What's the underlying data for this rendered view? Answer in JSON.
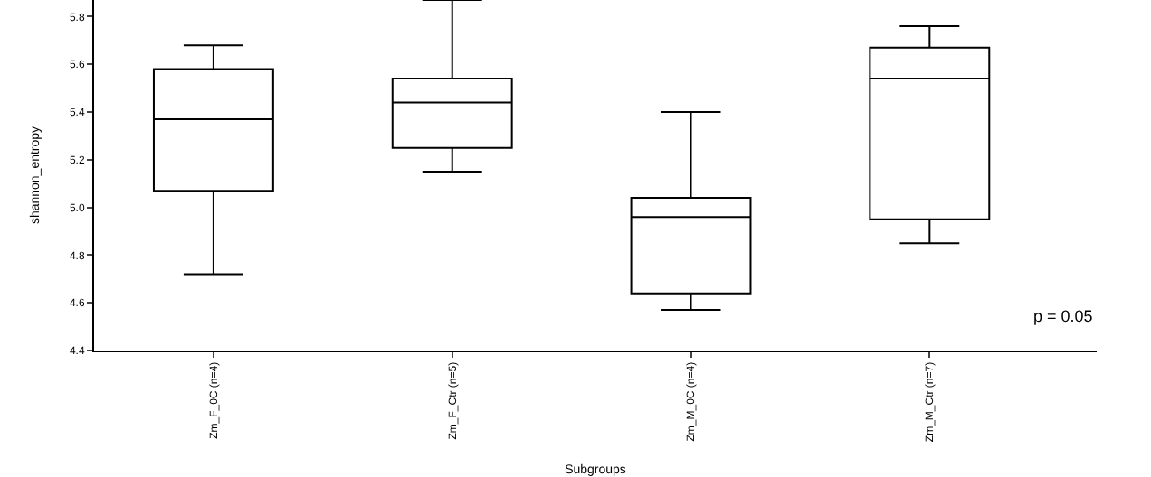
{
  "chart_data": {
    "type": "box",
    "xlabel": "Subgroups",
    "ylabel": "shannon_entropy",
    "categories": [
      "Zm_F_0C (n=4)",
      "Zm_F_Ctr (n=5)",
      "Zm_M_0C (n=4)",
      "Zm_M_Ctr (n=7)"
    ],
    "boxes": [
      {
        "low": 4.72,
        "q1": 5.07,
        "median": 5.37,
        "q3": 5.58,
        "high": 5.68
      },
      {
        "low": 5.15,
        "q1": 5.25,
        "median": 5.44,
        "q3": 5.54,
        "high": 5.87
      },
      {
        "low": 4.57,
        "q1": 4.64,
        "median": 4.96,
        "q3": 5.04,
        "high": 5.4
      },
      {
        "low": 4.85,
        "q1": 4.95,
        "median": 5.54,
        "q3": 5.67,
        "high": 5.76
      }
    ],
    "color": "#000000",
    "ylim": [
      4.4,
      5.87
    ],
    "yticks": [
      4.4,
      4.6,
      4.8,
      {
        "value": 5,
        "label": "5.0"
      },
      5.2,
      5.4,
      5.6,
      5.8
    ],
    "annotations": [
      "p = 0.05"
    ]
  }
}
